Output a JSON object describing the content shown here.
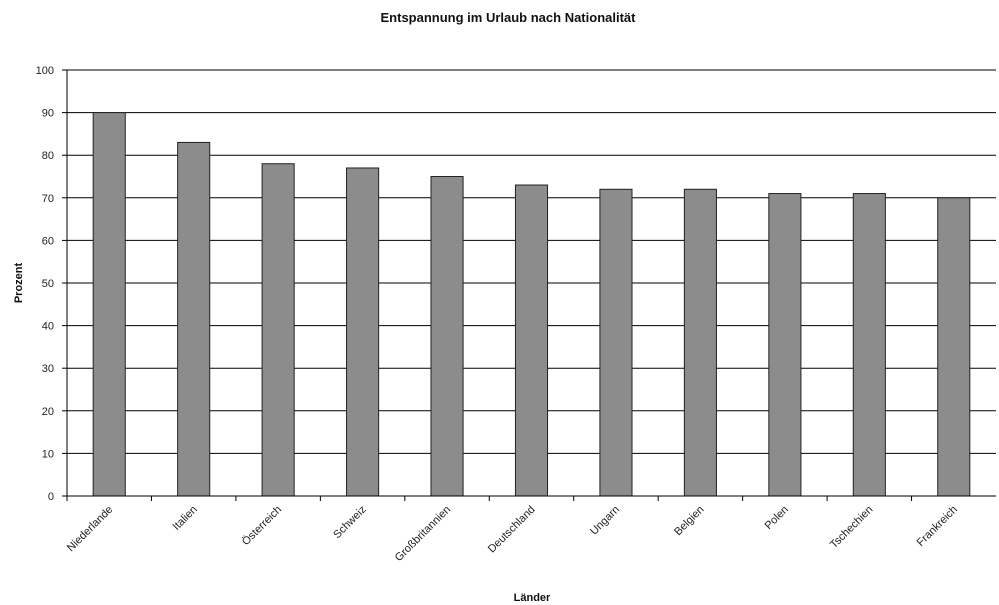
{
  "chart_data": {
    "type": "bar",
    "title": "Entspannung im Urlaub nach Nationalität",
    "xlabel": "Länder",
    "ylabel": "Prozent",
    "categories": [
      "Niederlande",
      "Italien",
      "Österreich",
      "Schweiz",
      "Großbritannien",
      "Deutschland",
      "Ungarn",
      "Belgien",
      "Polen",
      "Tschechien",
      "Frankreich"
    ],
    "values": [
      90,
      83,
      78,
      77,
      75,
      73,
      72,
      72,
      71,
      71,
      70
    ],
    "ylim": [
      0,
      100
    ],
    "yticks": [
      0,
      10,
      20,
      30,
      40,
      50,
      60,
      70,
      80,
      90,
      100
    ],
    "grid": true,
    "legend": "none",
    "colors": {
      "bar_fill": "#8c8c8c",
      "bar_stroke": "#222222",
      "grid": "#000000",
      "text": "#111111"
    }
  }
}
